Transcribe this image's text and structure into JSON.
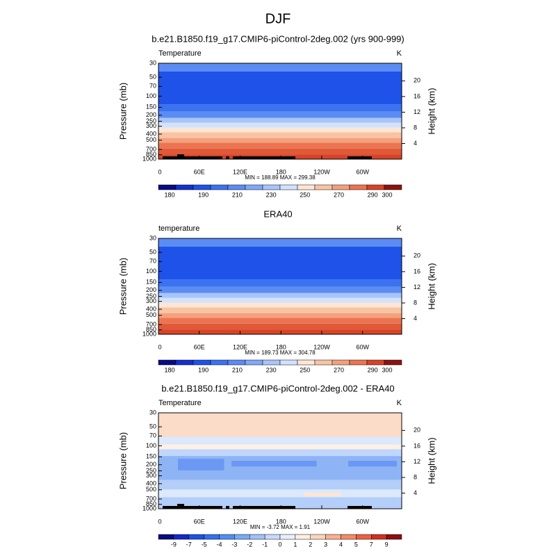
{
  "title": "DJF",
  "chart_data": [
    {
      "type": "contour",
      "title": "b.e21.B1850.f19_g17.CMIP6-piControl-2deg.002 (yrs 900-999)",
      "left_label": "Temperature",
      "right_label": "K",
      "stats": "MIN = 188.89  MAX = 299.38",
      "ylabel": "Pressure (mb)",
      "y2label": "Height (km)",
      "xlim": [
        0,
        357.5
      ],
      "xticks": [
        0,
        {
          "value": 60,
          "label": "60E"
        },
        {
          "value": 120,
          "label": "120E"
        },
        180,
        {
          "value": 240,
          "label": "120W"
        },
        {
          "value": 300,
          "label": "60W"
        }
      ],
      "ylim": [
        30,
        1000
      ],
      "log_y": true,
      "yticks": [
        30,
        50,
        70,
        100,
        150,
        200,
        250,
        300,
        400,
        500,
        700,
        850,
        1000
      ],
      "y2lim": [
        0,
        24.5
      ],
      "y2ticks": [
        4,
        8,
        12,
        16,
        20
      ],
      "colorbar": {
        "colors": [
          "#0a0a82",
          "#1530cc",
          "#1f52e8",
          "#3a72f0",
          "#5a8cf4",
          "#80a8f8",
          "#a8c4fa",
          "#d2e2fc",
          "#fde6d6",
          "#f8c4a4",
          "#f4a07c",
          "#ec7452",
          "#d84228",
          "#8a1410"
        ],
        "labels": [
          180,
          190,
          210,
          230,
          250,
          270,
          290,
          300
        ]
      }
    },
    {
      "type": "contour",
      "title": "ERA40",
      "left_label": "temperature",
      "right_label": "K",
      "stats": "MIN = 189.73  MAX = 304.78",
      "ylabel": "Pressure (mb)",
      "y2label": "Height (km)",
      "xlim": [
        0,
        357.5
      ],
      "xticks": [
        0,
        {
          "value": 60,
          "label": "60E"
        },
        {
          "value": 120,
          "label": "120E"
        },
        180,
        {
          "value": 240,
          "label": "120W"
        },
        {
          "value": 300,
          "label": "60W"
        }
      ],
      "ylim": [
        30,
        1000
      ],
      "log_y": true,
      "yticks": [
        30,
        50,
        70,
        100,
        150,
        200,
        250,
        300,
        400,
        500,
        700,
        850,
        1000
      ],
      "y2lim": [
        0,
        24.5
      ],
      "y2ticks": [
        4,
        8,
        12,
        16,
        20
      ],
      "colorbar": {
        "colors": [
          "#0a0a82",
          "#1530cc",
          "#1f52e8",
          "#3a72f0",
          "#5a8cf4",
          "#80a8f8",
          "#a8c4fa",
          "#d2e2fc",
          "#fde6d6",
          "#f8c4a4",
          "#f4a07c",
          "#ec7452",
          "#d84228",
          "#8a1410"
        ],
        "labels": [
          180,
          190,
          210,
          230,
          250,
          270,
          290,
          300
        ]
      }
    },
    {
      "type": "contour",
      "title": "b.e21.B1850.f19_g17.CMIP6-piControl-2deg.002 - ERA40",
      "left_label": "Temperature",
      "right_label": "K",
      "stats": "MIN =  -3.72  MAX =   1.91",
      "ylabel": "Pressure (mb)",
      "y2label": "Height (km)",
      "xlim": [
        0,
        357.5
      ],
      "xticks": [
        0,
        {
          "value": 60,
          "label": "60E"
        },
        {
          "value": 120,
          "label": "120E"
        },
        180,
        {
          "value": 240,
          "label": "120W"
        },
        {
          "value": 300,
          "label": "60W"
        }
      ],
      "ylim": [
        30,
        1000
      ],
      "log_y": true,
      "yticks": [
        30,
        50,
        70,
        100,
        150,
        200,
        250,
        300,
        400,
        500,
        700,
        850,
        1000
      ],
      "y2lim": [
        0,
        24.5
      ],
      "y2ticks": [
        4,
        8,
        12,
        16,
        20
      ],
      "colorbar": {
        "colors": [
          "#0a0a82",
          "#1428c8",
          "#1f50e6",
          "#3270f0",
          "#508cf5",
          "#78a8f8",
          "#a0c0fa",
          "#c8dafc",
          "#e8f0fd",
          "#fdeee4",
          "#fbd4bc",
          "#f8b090",
          "#f48a64",
          "#ec6040",
          "#d03020",
          "#8a1010"
        ],
        "labels": [
          -9,
          -7,
          -5,
          -4,
          -3,
          -2,
          -1,
          0,
          1,
          2,
          3,
          4,
          5,
          7,
          9
        ]
      }
    }
  ]
}
